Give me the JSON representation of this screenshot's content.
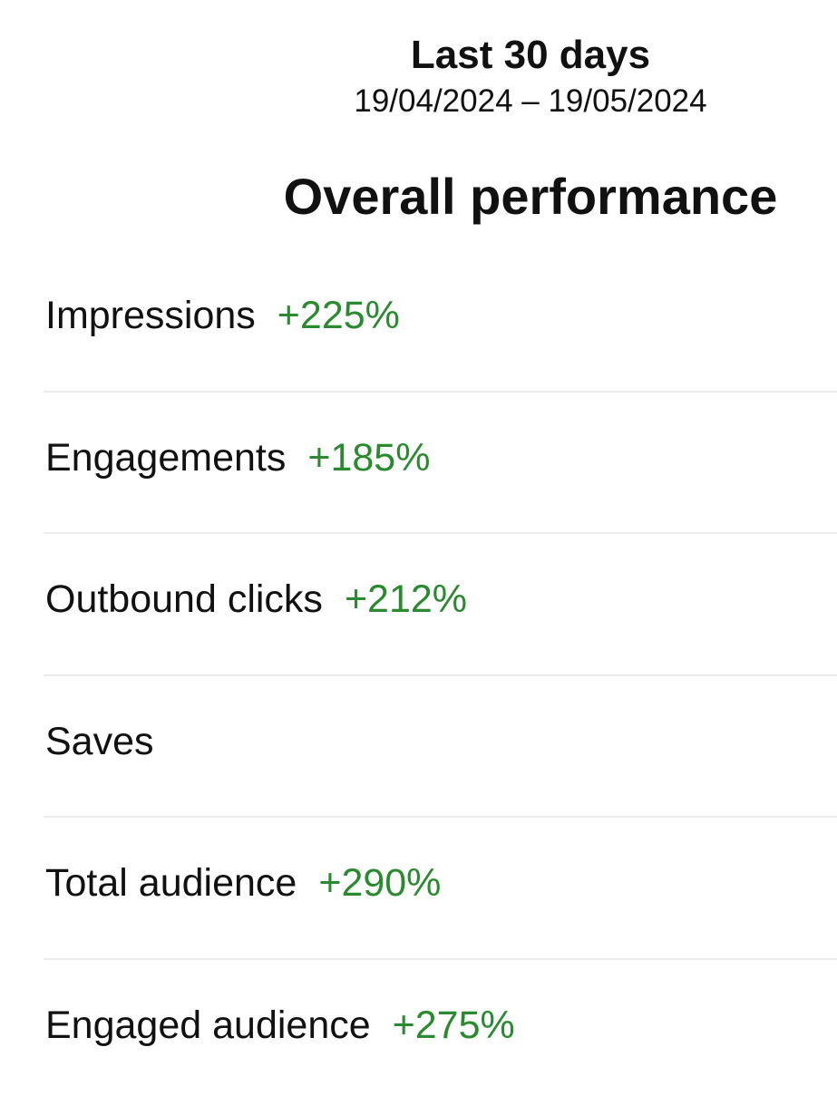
{
  "header": {
    "title": "Last 30 days",
    "date_range": "19/04/2024 – 19/05/2024"
  },
  "section": {
    "title": "Overall performance"
  },
  "metrics": [
    {
      "label": "Impressions",
      "change": "+225%"
    },
    {
      "label": "Engagements",
      "change": "+185%"
    },
    {
      "label": "Outbound clicks",
      "change": "+212%"
    },
    {
      "label": "Saves"
    },
    {
      "label": "Total audience",
      "change": "+290%"
    },
    {
      "label": "Engaged audience",
      "change": "+275%"
    }
  ]
}
